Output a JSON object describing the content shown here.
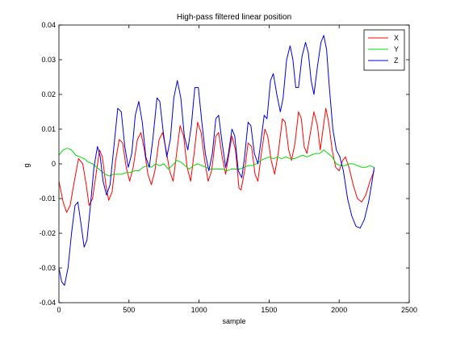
{
  "chart_data": {
    "type": "line",
    "title": "High-pass filtered linear position",
    "xlabel": "sample",
    "ylabel": "g",
    "xlim": [
      0,
      2500
    ],
    "ylim": [
      -0.04,
      0.04
    ],
    "xticks": [
      0,
      500,
      1000,
      1500,
      2000,
      2500
    ],
    "yticks": [
      -0.04,
      -0.03,
      -0.02,
      -0.01,
      0,
      0.01,
      0.02,
      0.03,
      0.04
    ],
    "xtick_labels": [
      "0",
      "500",
      "1000",
      "1500",
      "2000",
      "2500"
    ],
    "ytick_labels": [
      "-0.04",
      "-0.03",
      "-0.02",
      "-0.01",
      "0",
      "0.01",
      "0.02",
      "0.03",
      "0.04"
    ],
    "grid": false,
    "legend_position": "top-right",
    "series": [
      {
        "name": "X",
        "color": "#ff0000",
        "points": [
          [
            0,
            -0.005
          ],
          [
            30,
            -0.011
          ],
          [
            55,
            -0.014
          ],
          [
            80,
            -0.012
          ],
          [
            110,
            -0.005
          ],
          [
            140,
            0.0015
          ],
          [
            170,
            0.0
          ],
          [
            195,
            -0.006
          ],
          [
            215,
            -0.012
          ],
          [
            240,
            -0.01
          ],
          [
            265,
            -0.003
          ],
          [
            290,
            0.004
          ],
          [
            310,
            0.002
          ],
          [
            335,
            -0.006
          ],
          [
            355,
            -0.0105
          ],
          [
            380,
            -0.008
          ],
          [
            405,
            0.001
          ],
          [
            430,
            0.007
          ],
          [
            455,
            0.006
          ],
          [
            480,
            -0.001
          ],
          [
            505,
            -0.005
          ],
          [
            530,
            -0.001
          ],
          [
            560,
            0.007
          ],
          [
            585,
            0.009
          ],
          [
            610,
            0.004
          ],
          [
            635,
            -0.003
          ],
          [
            660,
            -0.006
          ],
          [
            685,
            -0.002
          ],
          [
            715,
            0.007
          ],
          [
            740,
            0.009
          ],
          [
            765,
            0.004
          ],
          [
            790,
            -0.002
          ],
          [
            815,
            -0.005
          ],
          [
            840,
            0.003
          ],
          [
            865,
            0.011
          ],
          [
            890,
            0.008
          ],
          [
            915,
            -0.001
          ],
          [
            940,
            -0.005
          ],
          [
            965,
            0.003
          ],
          [
            990,
            0.012
          ],
          [
            1015,
            0.009
          ],
          [
            1040,
            0.001
          ],
          [
            1065,
            -0.005
          ],
          [
            1090,
            -0.002
          ],
          [
            1120,
            0.008
          ],
          [
            1140,
            0.009
          ],
          [
            1165,
            0.002
          ],
          [
            1190,
            -0.003
          ],
          [
            1210,
            0.002
          ],
          [
            1235,
            0.008
          ],
          [
            1260,
            0.004
          ],
          [
            1285,
            -0.007
          ],
          [
            1300,
            -0.0075
          ],
          [
            1325,
            -0.002
          ],
          [
            1350,
            0.006
          ],
          [
            1375,
            0.005
          ],
          [
            1400,
            -0.003
          ],
          [
            1420,
            -0.005
          ],
          [
            1445,
            0.003
          ],
          [
            1470,
            0.01
          ],
          [
            1490,
            0.008
          ],
          [
            1515,
            0.001
          ],
          [
            1540,
            -0.003
          ],
          [
            1565,
            0.003
          ],
          [
            1595,
            0.013
          ],
          [
            1615,
            0.012
          ],
          [
            1640,
            0.004
          ],
          [
            1660,
            0.001
          ],
          [
            1685,
            0.006
          ],
          [
            1710,
            0.015
          ],
          [
            1730,
            0.013
          ],
          [
            1750,
            0.005
          ],
          [
            1770,
            0.003
          ],
          [
            1795,
            0.009
          ],
          [
            1820,
            0.015
          ],
          [
            1845,
            0.011
          ],
          [
            1865,
            0.004
          ],
          [
            1885,
            0.01
          ],
          [
            1905,
            0.016
          ],
          [
            1925,
            0.012
          ],
          [
            1950,
            0.004
          ],
          [
            1975,
            -0.001
          ],
          [
            2000,
            -0.002
          ],
          [
            2025,
            0.001
          ],
          [
            2045,
            0.002
          ],
          [
            2070,
            -0.001
          ],
          [
            2100,
            -0.006
          ],
          [
            2130,
            -0.01
          ],
          [
            2160,
            -0.011
          ],
          [
            2190,
            -0.009
          ],
          [
            2220,
            -0.005
          ],
          [
            2250,
            -0.002
          ]
        ]
      },
      {
        "name": "Y",
        "color": "#00dd00",
        "points": [
          [
            0,
            0.0025
          ],
          [
            30,
            0.004
          ],
          [
            60,
            0.0045
          ],
          [
            90,
            0.004
          ],
          [
            120,
            0.0025
          ],
          [
            150,
            0.002
          ],
          [
            180,
            0.0015
          ],
          [
            210,
            0.0005
          ],
          [
            240,
            0.0
          ],
          [
            270,
            -0.001
          ],
          [
            300,
            -0.002
          ],
          [
            330,
            -0.003
          ],
          [
            360,
            -0.0035
          ],
          [
            390,
            -0.003
          ],
          [
            420,
            -0.003
          ],
          [
            450,
            -0.003
          ],
          [
            480,
            -0.0025
          ],
          [
            510,
            -0.0025
          ],
          [
            540,
            -0.002
          ],
          [
            570,
            -0.002
          ],
          [
            600,
            -0.001
          ],
          [
            630,
            -0.0005
          ],
          [
            660,
            -0.001
          ],
          [
            690,
            0.0
          ],
          [
            720,
            -0.0005
          ],
          [
            750,
            0.0
          ],
          [
            780,
            -0.0015
          ],
          [
            810,
            -0.0005
          ],
          [
            840,
            0.001
          ],
          [
            870,
            0.0005
          ],
          [
            900,
            -0.0005
          ],
          [
            930,
            -0.0015
          ],
          [
            960,
            -0.0005
          ],
          [
            990,
            0.0
          ],
          [
            1020,
            -0.0005
          ],
          [
            1050,
            -0.001
          ],
          [
            1080,
            -0.0015
          ],
          [
            1110,
            -0.0015
          ],
          [
            1140,
            -0.0015
          ],
          [
            1170,
            -0.0015
          ],
          [
            1200,
            -0.002
          ],
          [
            1230,
            -0.0015
          ],
          [
            1260,
            -0.0015
          ],
          [
            1290,
            -0.0015
          ],
          [
            1320,
            -0.001
          ],
          [
            1350,
            -0.0005
          ],
          [
            1380,
            -0.0005
          ],
          [
            1410,
            0.0
          ],
          [
            1440,
            0.001
          ],
          [
            1470,
            0.0015
          ],
          [
            1500,
            0.002
          ],
          [
            1530,
            0.0015
          ],
          [
            1560,
            0.002
          ],
          [
            1590,
            0.0015
          ],
          [
            1620,
            0.002
          ],
          [
            1650,
            0.0015
          ],
          [
            1680,
            0.0015
          ],
          [
            1710,
            0.002
          ],
          [
            1740,
            0.0025
          ],
          [
            1770,
            0.002
          ],
          [
            1800,
            0.0025
          ],
          [
            1830,
            0.003
          ],
          [
            1860,
            0.003
          ],
          [
            1890,
            0.004
          ],
          [
            1920,
            0.003
          ],
          [
            1950,
            0.002
          ],
          [
            1980,
            0.0
          ],
          [
            2010,
            -0.0005
          ],
          [
            2040,
            -0.0005
          ],
          [
            2070,
            0.0
          ],
          [
            2100,
            0.0
          ],
          [
            2130,
            -0.0005
          ],
          [
            2160,
            -0.001
          ],
          [
            2190,
            -0.001
          ],
          [
            2220,
            -0.0005
          ],
          [
            2250,
            -0.001
          ]
        ]
      },
      {
        "name": "Z",
        "color": "#0000dd",
        "points": [
          [
            0,
            -0.03
          ],
          [
            20,
            -0.034
          ],
          [
            40,
            -0.035
          ],
          [
            65,
            -0.03
          ],
          [
            90,
            -0.02
          ],
          [
            115,
            -0.012
          ],
          [
            135,
            -0.011
          ],
          [
            160,
            -0.018
          ],
          [
            180,
            -0.024
          ],
          [
            200,
            -0.022
          ],
          [
            225,
            -0.012
          ],
          [
            250,
            -0.001
          ],
          [
            275,
            0.005
          ],
          [
            295,
            0.002
          ],
          [
            315,
            -0.005
          ],
          [
            340,
            -0.009
          ],
          [
            365,
            -0.006
          ],
          [
            390,
            0.004
          ],
          [
            420,
            0.016
          ],
          [
            445,
            0.015
          ],
          [
            470,
            0.005
          ],
          [
            495,
            -0.001
          ],
          [
            520,
            0.003
          ],
          [
            545,
            0.014
          ],
          [
            570,
            0.018
          ],
          [
            595,
            0.012
          ],
          [
            620,
            0.002
          ],
          [
            645,
            -0.001
          ],
          [
            670,
            0.007
          ],
          [
            700,
            0.019
          ],
          [
            720,
            0.018
          ],
          [
            745,
            0.009
          ],
          [
            770,
            0.002
          ],
          [
            795,
            0.007
          ],
          [
            820,
            0.019
          ],
          [
            845,
            0.024
          ],
          [
            870,
            0.019
          ],
          [
            895,
            0.008
          ],
          [
            920,
            0.004
          ],
          [
            945,
            0.011
          ],
          [
            970,
            0.022
          ],
          [
            995,
            0.022
          ],
          [
            1020,
            0.012
          ],
          [
            1045,
            0.003
          ],
          [
            1070,
            -0.002
          ],
          [
            1095,
            0.003
          ],
          [
            1120,
            0.013
          ],
          [
            1140,
            0.014
          ],
          [
            1165,
            0.006
          ],
          [
            1190,
            -0.001
          ],
          [
            1210,
            0.003
          ],
          [
            1235,
            0.01
          ],
          [
            1255,
            0.008
          ],
          [
            1280,
            -0.002
          ],
          [
            1305,
            -0.004
          ],
          [
            1325,
            0.002
          ],
          [
            1350,
            0.012
          ],
          [
            1370,
            0.011
          ],
          [
            1395,
            0.003
          ],
          [
            1420,
            0.0
          ],
          [
            1440,
            0.006
          ],
          [
            1465,
            0.014
          ],
          [
            1485,
            0.013
          ],
          [
            1510,
            0.024
          ],
          [
            1530,
            0.026
          ],
          [
            1555,
            0.02
          ],
          [
            1580,
            0.015
          ],
          [
            1600,
            0.019
          ],
          [
            1625,
            0.03
          ],
          [
            1650,
            0.034
          ],
          [
            1670,
            0.03
          ],
          [
            1690,
            0.022
          ],
          [
            1710,
            0.022
          ],
          [
            1735,
            0.031
          ],
          [
            1760,
            0.035
          ],
          [
            1780,
            0.032
          ],
          [
            1800,
            0.024
          ],
          [
            1820,
            0.02
          ],
          [
            1845,
            0.028
          ],
          [
            1870,
            0.035
          ],
          [
            1890,
            0.037
          ],
          [
            1910,
            0.033
          ],
          [
            1930,
            0.022
          ],
          [
            1955,
            0.01
          ],
          [
            1980,
            0.004
          ],
          [
            2005,
            0.002
          ],
          [
            2030,
            -0.002
          ],
          [
            2060,
            -0.01
          ],
          [
            2090,
            -0.015
          ],
          [
            2120,
            -0.018
          ],
          [
            2150,
            -0.0185
          ],
          [
            2180,
            -0.016
          ],
          [
            2210,
            -0.011
          ],
          [
            2235,
            -0.005
          ],
          [
            2250,
            -0.001
          ]
        ]
      }
    ]
  }
}
